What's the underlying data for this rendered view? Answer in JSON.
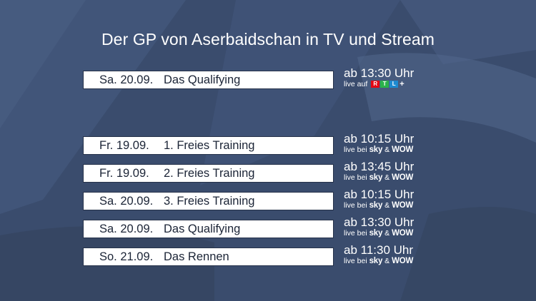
{
  "page": {
    "title": "Der GP von Aserbaidschan in TV und Stream"
  },
  "featured": {
    "date": "Sa. 20.09.",
    "event": "Das Qualifying",
    "time": "ab 13:30 Uhr",
    "live_prefix": "live auf",
    "rtl_letters": [
      "R",
      "T",
      "L"
    ],
    "rtl_plus": "+"
  },
  "schedule": [
    {
      "date": "Fr. 19.09.",
      "event": "1. Freies Training",
      "time": "ab 10:15 Uhr",
      "live_prefix": "live bei",
      "brand1": "sky",
      "amp": "&",
      "brand2": "WOW"
    },
    {
      "date": "Fr. 19.09.",
      "event": "2. Freies Training",
      "time": "ab 13:45 Uhr",
      "live_prefix": "live bei",
      "brand1": "sky",
      "amp": "&",
      "brand2": "WOW"
    },
    {
      "date": "Sa. 20.09.",
      "event": "3. Freies Training",
      "time": "ab 10:15 Uhr",
      "live_prefix": "live bei",
      "brand1": "sky",
      "amp": "&",
      "brand2": "WOW"
    },
    {
      "date": "Sa. 20.09.",
      "event": "Das Qualifying",
      "time": "ab 13:30 Uhr",
      "live_prefix": "live bei",
      "brand1": "sky",
      "amp": "&",
      "brand2": "WOW"
    },
    {
      "date": "So. 21.09.",
      "event": "Das Rennen",
      "time": "ab 11:30 Uhr",
      "live_prefix": "live bei",
      "brand1": "sky",
      "amp": "&",
      "brand2": "WOW"
    }
  ],
  "colors": {
    "background": "#3b4d6e",
    "rtl_red": "#e30613",
    "rtl_green": "#2bb34a",
    "rtl_blue": "#1d8ad1"
  }
}
